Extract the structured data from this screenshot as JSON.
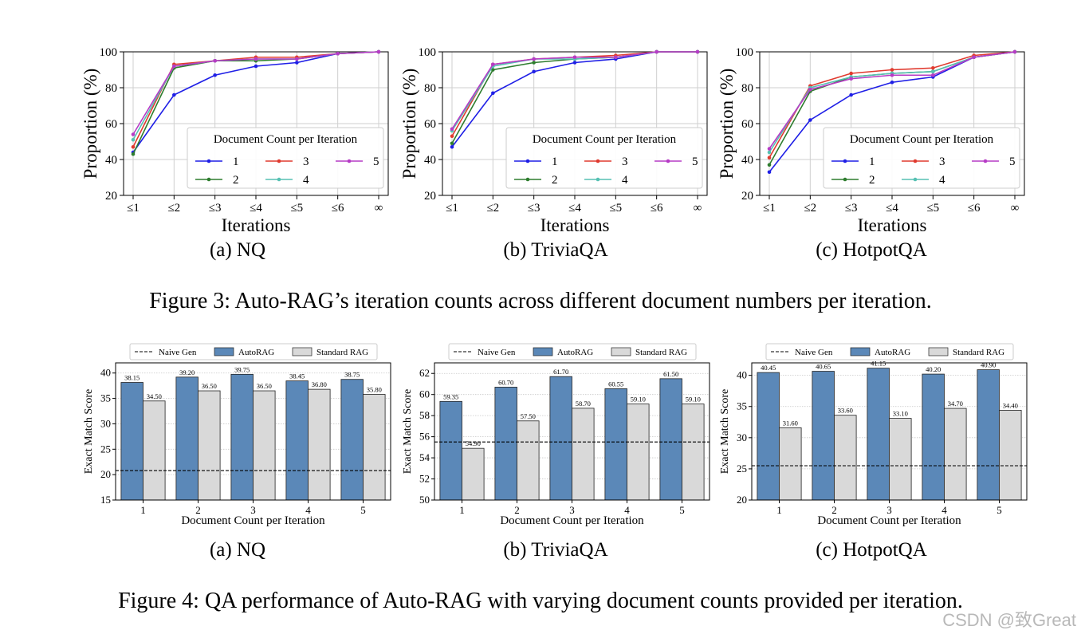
{
  "figure3": {
    "caption": "Figure 3: Auto-RAG’s iteration counts across different document numbers per iteration.",
    "legend_title": "Document Count per Iteration",
    "ylabel": "Proportion (%)",
    "xlabel": "Iterations"
  },
  "figure4": {
    "caption": "Figure 4: QA performance of Auto-RAG with varying document counts provided per iteration.",
    "legend_labels": [
      "Naive Gen",
      "AutoRAG",
      "Standard RAG"
    ],
    "ylabel": "Exact Match Score",
    "xlabel": "Document Count per Iteration"
  },
  "subcaptions": [
    "(a) NQ",
    "(b) TriviaQA",
    "(c) HotpotQA"
  ],
  "colors": {
    "series": [
      "#1f1fe6",
      "#2e7d2e",
      "#e03a2f",
      "#56c1b3",
      "#b63bc6"
    ],
    "autorag": "#5b88b8",
    "standard": "#d9d9d9",
    "grid": "#cfcfcf"
  },
  "watermark": "CSDN @致Great",
  "chart_data": [
    {
      "type": "line",
      "title": "(a) NQ",
      "xlabel": "Iterations",
      "ylabel": "Proportion (%)",
      "categories": [
        "≤1",
        "≤2",
        "≤3",
        "≤4",
        "≤5",
        "≤6",
        "∞"
      ],
      "ylim": [
        20,
        100
      ],
      "yticks": [
        20,
        40,
        60,
        80,
        100
      ],
      "legend_placement": "lower-right",
      "series": [
        {
          "name": "1",
          "values": [
            44,
            76,
            87,
            92,
            94,
            99,
            100
          ]
        },
        {
          "name": "2",
          "values": [
            43,
            91,
            95,
            95,
            96,
            99,
            100
          ]
        },
        {
          "name": "3",
          "values": [
            47,
            93,
            95,
            97,
            97,
            99,
            100
          ]
        },
        {
          "name": "4",
          "values": [
            51,
            92,
            95,
            96,
            96,
            99,
            100
          ]
        },
        {
          "name": "5",
          "values": [
            54,
            92,
            95,
            96,
            96,
            99,
            100
          ]
        }
      ]
    },
    {
      "type": "line",
      "title": "(b) TriviaQA",
      "xlabel": "Iterations",
      "ylabel": "Proportion (%)",
      "categories": [
        "≤1",
        "≤2",
        "≤3",
        "≤4",
        "≤5",
        "≤6",
        "∞"
      ],
      "ylim": [
        20,
        100
      ],
      "yticks": [
        20,
        40,
        60,
        80,
        100
      ],
      "legend_placement": "lower-right",
      "series": [
        {
          "name": "1",
          "values": [
            47,
            77,
            89,
            94,
            96,
            100,
            100
          ]
        },
        {
          "name": "2",
          "values": [
            49,
            90,
            94,
            96,
            97,
            100,
            100
          ]
        },
        {
          "name": "3",
          "values": [
            53,
            93,
            96,
            97,
            98,
            100,
            100
          ]
        },
        {
          "name": "4",
          "values": [
            56,
            92,
            96,
            96,
            97,
            100,
            100
          ]
        },
        {
          "name": "5",
          "values": [
            57,
            93,
            96,
            97,
            97,
            100,
            100
          ]
        }
      ]
    },
    {
      "type": "line",
      "title": "(c) HotpotQA",
      "xlabel": "Iterations",
      "ylabel": "Proportion (%)",
      "categories": [
        "≤1",
        "≤2",
        "≤3",
        "≤4",
        "≤5",
        "≤6",
        "∞"
      ],
      "ylim": [
        20,
        100
      ],
      "yticks": [
        20,
        40,
        60,
        80,
        100
      ],
      "legend_placement": "lower-right",
      "series": [
        {
          "name": "1",
          "values": [
            33,
            62,
            76,
            83,
            86,
            97,
            100
          ]
        },
        {
          "name": "2",
          "values": [
            37,
            78,
            86,
            88,
            89,
            97,
            100
          ]
        },
        {
          "name": "3",
          "values": [
            41,
            81,
            88,
            90,
            91,
            98,
            100
          ]
        },
        {
          "name": "4",
          "values": [
            44,
            80,
            86,
            88,
            89,
            97,
            100
          ]
        },
        {
          "name": "5",
          "values": [
            46,
            79,
            85,
            87,
            87,
            97,
            100
          ]
        }
      ]
    },
    {
      "type": "bar",
      "title": "(a) NQ",
      "xlabel": "Document Count per Iteration",
      "ylabel": "Exact Match Score",
      "categories": [
        "1",
        "2",
        "3",
        "4",
        "5"
      ],
      "ylim": [
        15,
        42
      ],
      "yticks": [
        15,
        20,
        25,
        30,
        35,
        40
      ],
      "naive_gen": 20.8,
      "series": [
        {
          "name": "AutoRAG",
          "values": [
            38.15,
            39.2,
            39.75,
            38.45,
            38.75
          ],
          "labels": [
            "38.15",
            "39.20",
            "39.75",
            "38.45",
            "38.75"
          ]
        },
        {
          "name": "Standard RAG",
          "values": [
            34.5,
            36.5,
            36.5,
            36.8,
            35.8
          ],
          "labels": [
            "34.50",
            "36.50",
            "36.50",
            "36.80",
            "35.80"
          ]
        }
      ]
    },
    {
      "type": "bar",
      "title": "(b) TriviaQA",
      "xlabel": "Document Count per Iteration",
      "ylabel": "Exact Match Score",
      "categories": [
        "1",
        "2",
        "3",
        "4",
        "5"
      ],
      "ylim": [
        50,
        63
      ],
      "yticks": [
        50,
        52,
        54,
        56,
        58,
        60,
        62
      ],
      "naive_gen": 55.5,
      "series": [
        {
          "name": "AutoRAG",
          "values": [
            59.35,
            60.7,
            61.7,
            60.55,
            61.5
          ],
          "labels": [
            "59.35",
            "60.70",
            "61.70",
            "60.55",
            "61.50"
          ]
        },
        {
          "name": "Standard RAG",
          "values": [
            54.9,
            57.5,
            58.7,
            59.1,
            59.1
          ],
          "labels": [
            "54.90",
            "57.50",
            "58.70",
            "59.10",
            "59.10"
          ]
        }
      ]
    },
    {
      "type": "bar",
      "title": "(c) HotpotQA",
      "xlabel": "Document Count per Iteration",
      "ylabel": "Exact Match Score",
      "categories": [
        "1",
        "2",
        "3",
        "4",
        "5"
      ],
      "ylim": [
        20,
        42
      ],
      "yticks": [
        20,
        25,
        30,
        35,
        40
      ],
      "naive_gen": 25.5,
      "series": [
        {
          "name": "AutoRAG",
          "values": [
            40.45,
            40.65,
            41.15,
            40.2,
            40.9
          ],
          "labels": [
            "40.45",
            "40.65",
            "41.15",
            "40.20",
            "40.90"
          ]
        },
        {
          "name": "Standard RAG",
          "values": [
            31.6,
            33.6,
            33.1,
            34.7,
            34.4
          ],
          "labels": [
            "31.60",
            "33.60",
            "33.10",
            "34.70",
            "34.40"
          ]
        }
      ]
    }
  ]
}
